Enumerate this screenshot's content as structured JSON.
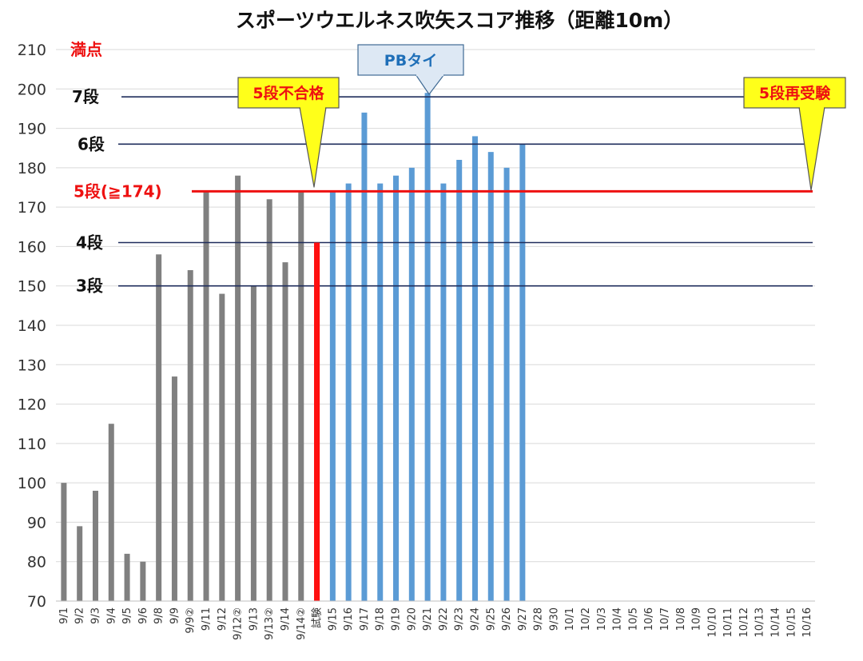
{
  "chart_data": {
    "type": "bar",
    "title": "スポーツウエルネス吹矢スコア推移（距離10m）",
    "ylim": [
      70,
      210
    ],
    "yticks": [
      70,
      80,
      90,
      100,
      110,
      120,
      130,
      140,
      150,
      160,
      170,
      180,
      190,
      200,
      210
    ],
    "grid": true,
    "categories": [
      "9/1",
      "9/2",
      "9/3",
      "9/4",
      "9/5",
      "9/6",
      "9/8",
      "9/9",
      "9/9②",
      "9/11",
      "9/12",
      "9/12②",
      "9/13",
      "9/13②",
      "9/14",
      "9/14②",
      "試験",
      "9/15",
      "9/16",
      "9/17",
      "9/18",
      "9/19",
      "9/20",
      "9/21",
      "9/22",
      "9/23",
      "9/24",
      "9/25",
      "9/26",
      "9/27",
      "9/28",
      "9/30",
      "10/1",
      "10/2",
      "10/3",
      "10/4",
      "10/5",
      "10/6",
      "10/7",
      "10/8",
      "10/9",
      "10/10",
      "10/11",
      "10/12",
      "10/13",
      "10/14",
      "10/15",
      "10/16"
    ],
    "values": [
      100,
      89,
      98,
      115,
      82,
      80,
      158,
      127,
      154,
      174,
      148,
      178,
      150,
      172,
      156,
      174,
      161,
      174,
      176,
      194,
      176,
      178,
      180,
      199,
      176,
      182,
      188,
      184,
      180,
      186,
      null,
      null,
      null,
      null,
      null,
      null,
      null,
      null,
      null,
      null,
      null,
      null,
      null,
      null,
      null,
      null,
      null,
      null
    ],
    "bar_groups": [
      {
        "from": "9/1",
        "to": "9/14②",
        "color": "#808080"
      },
      {
        "from": "試験",
        "to": "試験",
        "color": "#ff1010"
      },
      {
        "from": "9/15",
        "to": "9/27",
        "color": "#5b9bd5"
      }
    ],
    "reference_lines": [
      {
        "label": "満点",
        "value": 210,
        "color": "#ee1111",
        "line": false
      },
      {
        "label": "7段",
        "value": 198,
        "color": "#1f2d5c",
        "line": true
      },
      {
        "label": "6段",
        "value": 186,
        "color": "#1f2d5c",
        "line": true
      },
      {
        "label": "5段(≧174)",
        "value": 174,
        "color": "#ee1111",
        "line": true
      },
      {
        "label": "4段",
        "value": 161,
        "color": "#1f2d5c",
        "line": true
      },
      {
        "label": "3段",
        "value": 150,
        "color": "#1f2d5c",
        "line": true
      }
    ],
    "annotations": [
      {
        "text": "5段不合格",
        "style": "yellow",
        "target_category": "試験",
        "target_value": 174
      },
      {
        "text": "PBタイ",
        "style": "blue",
        "target_category": "9/21",
        "target_value": 199
      },
      {
        "text": "5段再受験",
        "style": "yellow",
        "target_category": "10/16",
        "target_value": 174
      }
    ]
  }
}
